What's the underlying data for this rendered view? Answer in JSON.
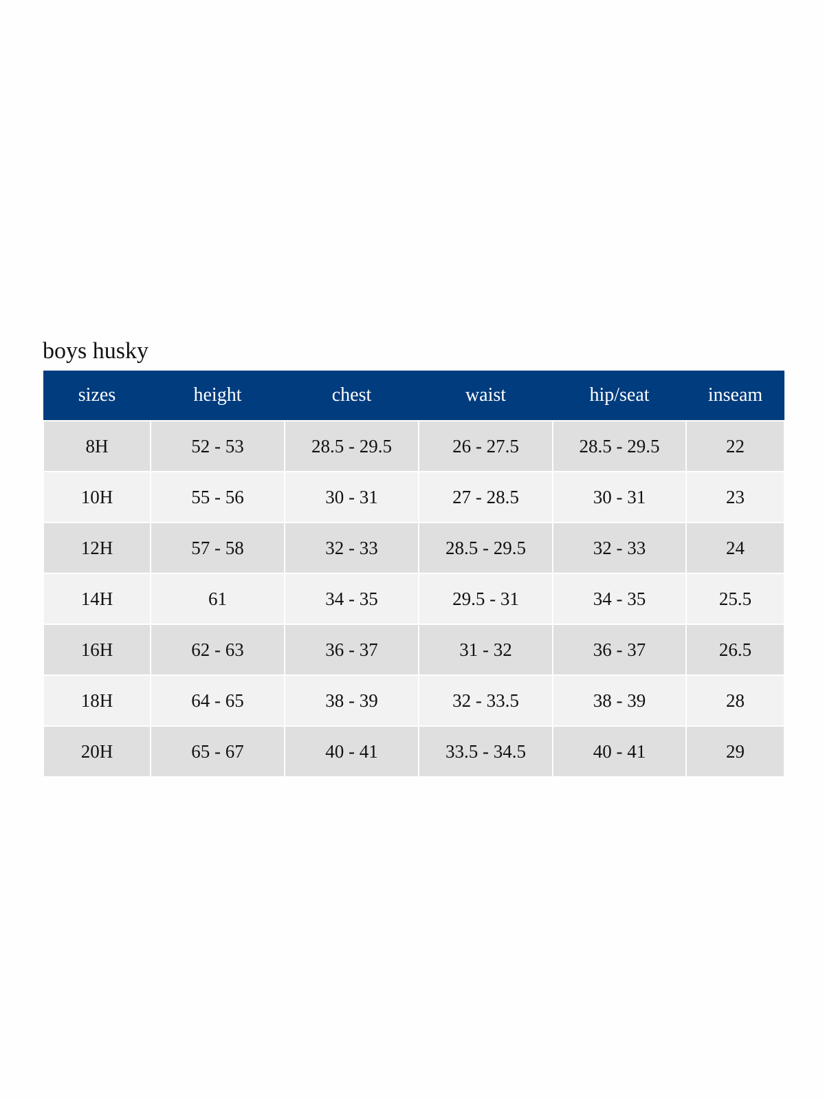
{
  "title": "boys husky",
  "columns": [
    "sizes",
    "height",
    "chest",
    "waist",
    "hip/seat",
    "inseam"
  ],
  "rows": [
    [
      "8H",
      "52 - 53",
      "28.5 - 29.5",
      "26 - 27.5",
      "28.5 - 29.5",
      "22"
    ],
    [
      "10H",
      "55 - 56",
      "30 - 31",
      "27 - 28.5",
      "30 - 31",
      "23"
    ],
    [
      "12H",
      "57 - 58",
      "32 - 33",
      "28.5 - 29.5",
      "32 - 33",
      "24"
    ],
    [
      "14H",
      "61",
      "34 - 35",
      "29.5 - 31",
      "34 - 35",
      "25.5"
    ],
    [
      "16H",
      "62 - 63",
      "36 - 37",
      "31 - 32",
      "36 - 37",
      "26.5"
    ],
    [
      "18H",
      "64 - 65",
      "38 - 39",
      "32 - 33.5",
      "38 - 39",
      "28"
    ],
    [
      "20H",
      "65 - 67",
      "40 - 41",
      "33.5 - 34.5",
      "40 - 41",
      "29"
    ]
  ],
  "colors": {
    "header_bg": "#003c7e",
    "row_dark": "#dfdfdf",
    "row_light": "#f2f2f2"
  }
}
